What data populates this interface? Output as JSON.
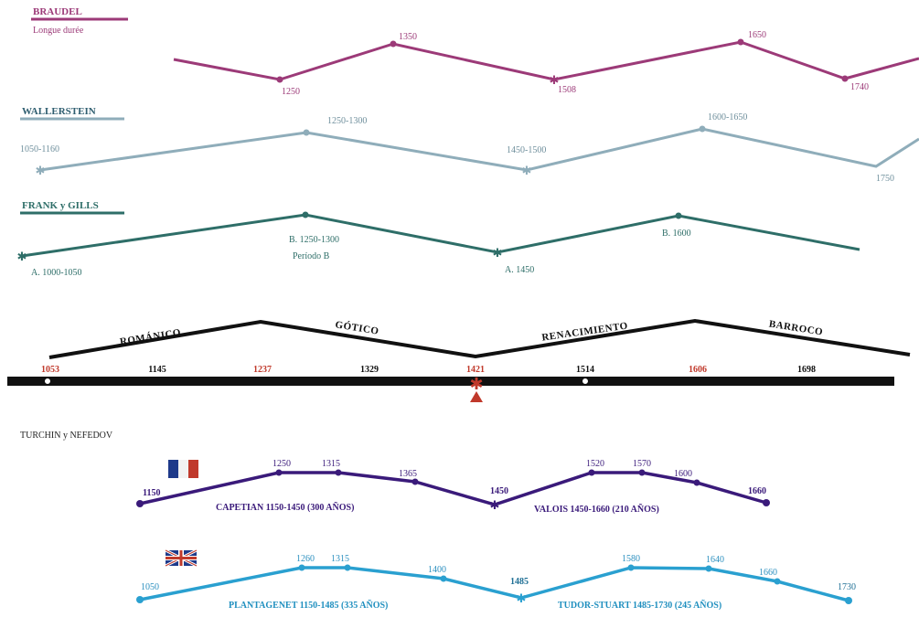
{
  "colors": {
    "braudel": "#9c3a78",
    "wallerstein": "#8fadba",
    "frank_gills": "#2e6e68",
    "styles": "#111111",
    "timeline": "#111111",
    "timeline_red": "#c0392b",
    "turchin_fr": "#3a1a7a",
    "turchin_en": "#2aa0d0"
  },
  "braudel": {
    "title": "BRAUDEL",
    "subtitle": "Longue durée",
    "labels": [
      "1250",
      "1350",
      "1508",
      "1650",
      "1740"
    ]
  },
  "wallerstein": {
    "title": "WALLERSTEIN",
    "labels": [
      "1050-1160",
      "1250-1300",
      "1450-1500",
      "1600-1650",
      "1750"
    ]
  },
  "frank_gills": {
    "title": "FRANK y GILLS",
    "labels": [
      "A. 1000-1050",
      "B. 1250-1300",
      "Período B",
      "A. 1450",
      "B. 1600"
    ]
  },
  "styles": {
    "names": [
      "ROMÁNICO",
      "GÓTICO",
      "RENACIMIENTO",
      "BARROCO"
    ]
  },
  "timeline": {
    "ticks": [
      {
        "label": "1053",
        "red": true
      },
      {
        "label": "1145",
        "red": false
      },
      {
        "label": "1237",
        "red": true
      },
      {
        "label": "1329",
        "red": false
      },
      {
        "label": "1421",
        "red": true
      },
      {
        "label": "1514",
        "red": false
      },
      {
        "label": "1606",
        "red": true
      },
      {
        "label": "1698",
        "red": false
      }
    ]
  },
  "turchin": {
    "title": "TURCHIN y NEFEDOV",
    "france": {
      "labels": [
        "1150",
        "1250",
        "1315",
        "1365",
        "1450",
        "1520",
        "1570",
        "1600",
        "1660"
      ],
      "caption1": "CAPETIAN 1150-1450 (300 AÑOS)",
      "caption2": "VALOIS 1450-1660 (210 AÑOS)",
      "flag": "france-flag"
    },
    "england": {
      "labels": [
        "1050",
        "1260",
        "1315",
        "1400",
        "1485",
        "1580",
        "1640",
        "1660",
        "1730"
      ],
      "caption1": "PLANTAGENET 1150-1485 (335 AÑOS)",
      "caption2": "TUDOR-STUART 1485-1730 (245 AÑOS)",
      "flag": "uk-flag"
    }
  }
}
